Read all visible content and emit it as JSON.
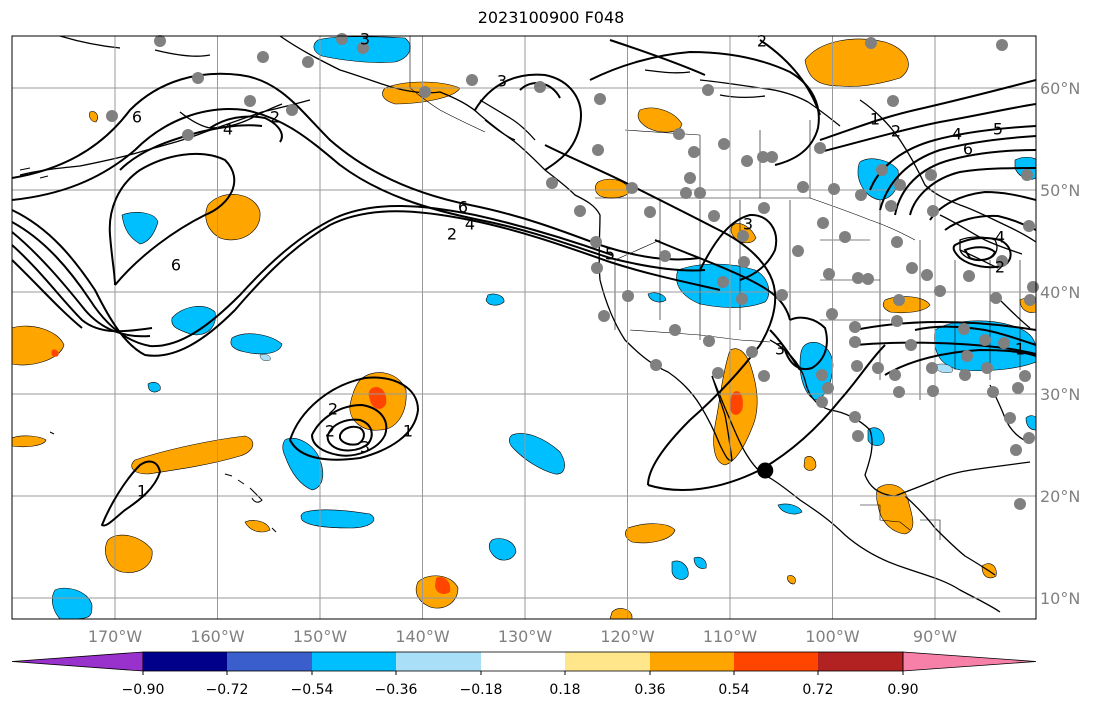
{
  "title": "2023100900 F048",
  "longitude_labels": [
    "170°W",
    "160°W",
    "150°W",
    "140°W",
    "130°W",
    "120°W",
    "110°W",
    "100°W",
    "90°W"
  ],
  "latitude_labels": [
    "60°N",
    "50°N",
    "40°N",
    "30°N",
    "20°N",
    "10°N"
  ],
  "colorbar": {
    "tick_labels": [
      "−0.90",
      "−0.72",
      "−0.54",
      "−0.36",
      "−0.18",
      "0.18",
      "0.36",
      "0.54",
      "0.72",
      "0.90"
    ],
    "colors": [
      "#9932cc",
      "#00008b",
      "#3a5fcd",
      "#00bfff",
      "#aadff8",
      "#ffffff",
      "#ffe68a",
      "#ffa500",
      "#ff4500",
      "#b22222",
      "#f780a9"
    ],
    "extend": "both"
  },
  "contour_labels": [
    "6",
    "4",
    "2",
    "3",
    "2",
    "1",
    "2",
    "4",
    "6",
    "4",
    "2",
    "6",
    "5",
    "3",
    "1",
    "2",
    "4",
    "5",
    "6",
    "3",
    "2",
    "3",
    "2",
    "1",
    "1",
    "3"
  ],
  "marker": {
    "lon": -105,
    "lat": 22.5,
    "label": ""
  },
  "style": {
    "contour_color": "#000000",
    "station_color": "#808080",
    "grid_color": "#999999",
    "axis_label_color": "#808080"
  }
}
